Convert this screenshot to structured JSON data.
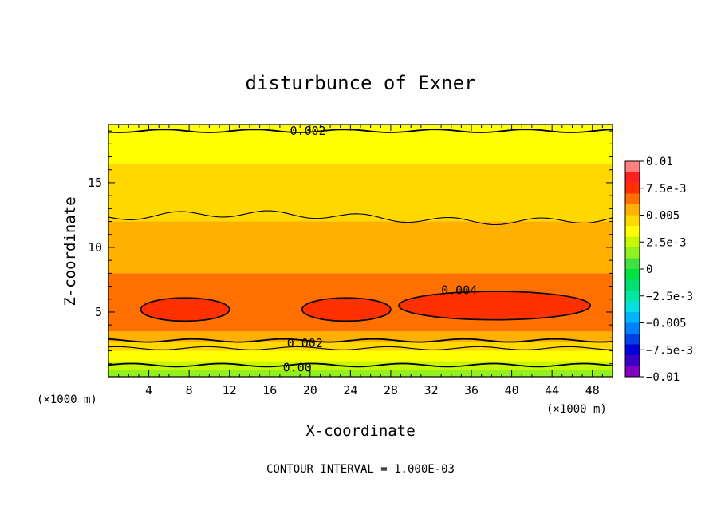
{
  "chart_data": {
    "type": "heatmap",
    "title": "disturbunce of Exner",
    "xlabel": "X-coordinate",
    "ylabel": "Z-coordinate",
    "x_unit_left": "(×1000 m)",
    "x_unit_right": "(×1000 m)",
    "note": "CONTOUR INTERVAL = 1.000E-03",
    "xlim": [
      0,
      50
    ],
    "ylim": [
      0,
      19.5
    ],
    "x_ticks": [
      "4",
      "8",
      "12",
      "16",
      "20",
      "24",
      "28",
      "32",
      "36",
      "40",
      "44",
      "48"
    ],
    "x_tick_values": [
      4,
      8,
      12,
      16,
      20,
      24,
      28,
      32,
      36,
      40,
      44,
      48
    ],
    "y_ticks": [
      "5",
      "10",
      "15"
    ],
    "y_tick_values": [
      5,
      10,
      15
    ],
    "contour_labels": [
      {
        "text": "0.002",
        "x": 18,
        "z": 19.0
      },
      {
        "text": "0.004",
        "x": 33,
        "z": 6.7
      },
      {
        "text": "0.002",
        "x": 17.7,
        "z": 2.6
      },
      {
        "text": "0.00",
        "x": 17.3,
        "z": 0.7
      }
    ],
    "colorbar": {
      "tick_labels": [
        "0.01",
        "7.5e-3",
        "0.005",
        "2.5e-3",
        "0",
        "−2.5e-3",
        "−0.005",
        "−7.5e-3",
        "−0.01"
      ],
      "range": [
        -0.01,
        0.01
      ],
      "colors": [
        "#8000c0",
        "#3a00c8",
        "#0000d8",
        "#0040e8",
        "#0080ff",
        "#00b4ff",
        "#00e0e0",
        "#00e8a0",
        "#00e070",
        "#00e040",
        "#40e040",
        "#90f020",
        "#c8f800",
        "#ffff00",
        "#ffd800",
        "#ffb000",
        "#ff7000",
        "#ff3000",
        "#ff2020",
        "#ff8080"
      ]
    },
    "field_bands": [
      {
        "z_bottom": 0.0,
        "z_top": 0.5,
        "value": 0.0015
      },
      {
        "z_bottom": 0.5,
        "z_top": 1.2,
        "value": 0.0025
      },
      {
        "z_bottom": 1.2,
        "z_top": 2.0,
        "value": 0.0035
      },
      {
        "z_bottom": 2.0,
        "z_top": 2.7,
        "value": 0.0045
      },
      {
        "z_bottom": 2.7,
        "z_top": 3.5,
        "value": 0.0055
      },
      {
        "z_bottom": 3.5,
        "z_top": 8.0,
        "value": 0.0065
      },
      {
        "z_bottom": 8.0,
        "z_top": 12.0,
        "value": 0.0055
      },
      {
        "z_bottom": 12.0,
        "z_top": 16.5,
        "value": 0.0045
      },
      {
        "z_bottom": 16.5,
        "z_top": 19.5,
        "value": 0.0035
      }
    ],
    "high_regions": [
      {
        "x_center": 7.6,
        "z_center": 5.2,
        "x_halfwidth": 4.4,
        "z_halfheight": 0.9
      },
      {
        "x_center": 23.6,
        "z_center": 5.2,
        "x_halfwidth": 4.4,
        "z_halfheight": 0.9
      },
      {
        "x_center": 38.3,
        "z_center": 5.5,
        "x_halfwidth": 9.5,
        "z_halfheight": 1.1
      }
    ]
  }
}
